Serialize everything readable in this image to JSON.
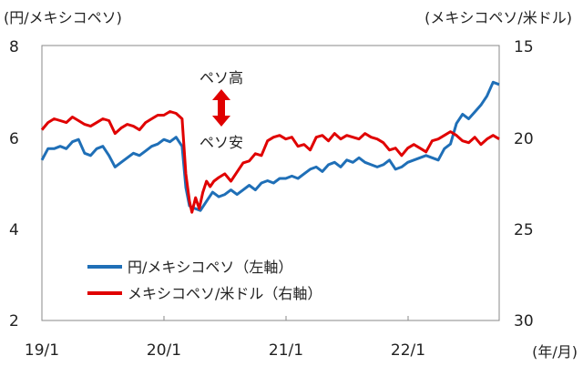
{
  "chart_data": {
    "type": "line",
    "left_axis_label": "(円/メキシコペソ)",
    "right_axis_label": "(メキシコペソ/米ドル)",
    "x_unit_label": "(年/月)",
    "x_ticks": [
      "19/1",
      "20/1",
      "21/1",
      "22/1"
    ],
    "x_range": [
      2019.0,
      2022.75
    ],
    "left_ylim": [
      2,
      8
    ],
    "left_yticks": [
      "8",
      "6",
      "4",
      "2"
    ],
    "right_ylim": [
      15,
      30
    ],
    "right_axis_inverted": true,
    "right_yticks": [
      "15",
      "20",
      "25",
      "30"
    ],
    "grid": false,
    "legend_placement": "bottom-left",
    "annotation": {
      "up_label": "ペソ高",
      "down_label": "ペソ安",
      "arrow_color": "#e00000"
    },
    "series": [
      {
        "name": "円/メキシコペソ（左軸）",
        "axis": "left",
        "color": "#1f6fb7",
        "x": [
          2019.0,
          2019.05,
          2019.1,
          2019.15,
          2019.2,
          2019.25,
          2019.3,
          2019.35,
          2019.4,
          2019.45,
          2019.5,
          2019.55,
          2019.6,
          2019.65,
          2019.7,
          2019.75,
          2019.8,
          2019.85,
          2019.9,
          2019.95,
          2020.0,
          2020.05,
          2020.1,
          2020.15,
          2020.18,
          2020.21,
          2020.25,
          2020.3,
          2020.35,
          2020.4,
          2020.45,
          2020.5,
          2020.55,
          2020.6,
          2020.65,
          2020.7,
          2020.75,
          2020.8,
          2020.85,
          2020.9,
          2020.95,
          2021.0,
          2021.05,
          2021.1,
          2021.15,
          2021.2,
          2021.25,
          2021.3,
          2021.35,
          2021.4,
          2021.45,
          2021.5,
          2021.55,
          2021.6,
          2021.65,
          2021.7,
          2021.75,
          2021.8,
          2021.85,
          2021.9,
          2021.95,
          2022.0,
          2022.05,
          2022.1,
          2022.15,
          2022.2,
          2022.25,
          2022.3,
          2022.35,
          2022.4,
          2022.45,
          2022.5,
          2022.55,
          2022.6,
          2022.65,
          2022.7,
          2022.75
        ],
        "values": [
          5.5,
          5.75,
          5.75,
          5.8,
          5.75,
          5.9,
          5.95,
          5.65,
          5.6,
          5.75,
          5.8,
          5.6,
          5.35,
          5.45,
          5.55,
          5.65,
          5.6,
          5.7,
          5.8,
          5.85,
          5.95,
          5.9,
          6.0,
          5.8,
          4.9,
          4.5,
          4.45,
          4.4,
          4.6,
          4.8,
          4.7,
          4.75,
          4.85,
          4.75,
          4.85,
          4.95,
          4.85,
          5.0,
          5.05,
          5.0,
          5.1,
          5.1,
          5.15,
          5.1,
          5.2,
          5.3,
          5.35,
          5.25,
          5.4,
          5.45,
          5.35,
          5.5,
          5.45,
          5.55,
          5.45,
          5.4,
          5.35,
          5.4,
          5.5,
          5.3,
          5.35,
          5.45,
          5.5,
          5.55,
          5.6,
          5.55,
          5.5,
          5.75,
          5.85,
          6.3,
          6.5,
          6.4,
          6.55,
          6.7,
          6.9,
          7.2,
          7.15
        ]
      },
      {
        "name": "メキシコペソ/米ドル（右軸）",
        "axis": "right",
        "color": "#e00000",
        "x": [
          2019.0,
          2019.05,
          2019.1,
          2019.15,
          2019.2,
          2019.25,
          2019.3,
          2019.35,
          2019.4,
          2019.45,
          2019.5,
          2019.55,
          2019.6,
          2019.65,
          2019.7,
          2019.75,
          2019.8,
          2019.85,
          2019.9,
          2019.95,
          2020.0,
          2020.05,
          2020.1,
          2020.15,
          2020.18,
          2020.21,
          2020.23,
          2020.26,
          2020.29,
          2020.32,
          2020.35,
          2020.38,
          2020.41,
          2020.45,
          2020.5,
          2020.55,
          2020.6,
          2020.65,
          2020.7,
          2020.75,
          2020.8,
          2020.85,
          2020.9,
          2020.95,
          2021.0,
          2021.05,
          2021.1,
          2021.15,
          2021.2,
          2021.25,
          2021.3,
          2021.35,
          2021.4,
          2021.45,
          2021.5,
          2021.55,
          2021.6,
          2021.65,
          2021.7,
          2021.75,
          2021.8,
          2021.85,
          2021.9,
          2021.95,
          2022.0,
          2022.05,
          2022.1,
          2022.15,
          2022.2,
          2022.25,
          2022.3,
          2022.35,
          2022.4,
          2022.45,
          2022.5,
          2022.55,
          2022.6,
          2022.65,
          2022.7,
          2022.75
        ],
        "values": [
          19.6,
          19.2,
          19.0,
          19.1,
          19.2,
          18.9,
          19.1,
          19.3,
          19.4,
          19.2,
          19.0,
          19.1,
          19.8,
          19.5,
          19.3,
          19.4,
          19.6,
          19.2,
          19.0,
          18.8,
          18.8,
          18.6,
          18.7,
          19.0,
          22.0,
          23.5,
          24.1,
          23.3,
          23.9,
          23.0,
          22.4,
          22.7,
          22.4,
          22.2,
          22.0,
          22.4,
          21.9,
          21.4,
          21.3,
          20.9,
          21.0,
          20.2,
          20.0,
          19.9,
          20.1,
          20.0,
          20.5,
          20.4,
          20.7,
          20.0,
          19.9,
          20.2,
          19.8,
          20.1,
          19.9,
          20.0,
          20.1,
          19.8,
          20.0,
          20.1,
          20.3,
          20.7,
          20.6,
          21.0,
          20.6,
          20.4,
          20.6,
          20.8,
          20.2,
          20.1,
          19.9,
          19.7,
          19.9,
          20.2,
          20.3,
          20.0,
          20.4,
          20.1,
          19.9,
          20.1
        ]
      }
    ]
  }
}
